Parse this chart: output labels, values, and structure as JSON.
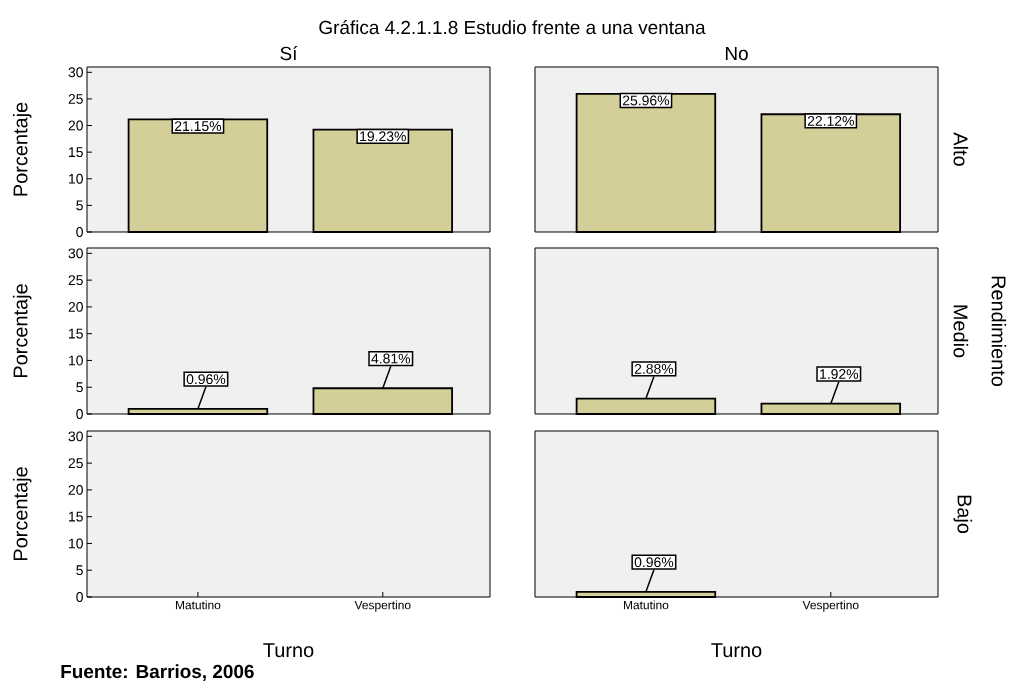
{
  "chart_data": [
    {
      "type": "bar",
      "title": "Gráfica 4.2.1.1.8 Estudio frente a una ventana",
      "subtitle": "Sí",
      "ylabel": "Porcentaje",
      "categories": [
        null,
        null
      ],
      "values": [
        21.15,
        19.23
      ],
      "value_labels": [
        "21.15%",
        "19.23%"
      ],
      "color": "#d4cf99",
      "ylim": [
        0,
        31
      ],
      "yticks": [
        0,
        5,
        10,
        15,
        20,
        25,
        30
      ],
      "tick_labels": "y"
    },
    {
      "type": "bar",
      "title": "No",
      "y2label": "Alto",
      "categories": [
        null,
        null
      ],
      "values": [
        25.96,
        22.12
      ],
      "value_labels": [
        "25.96%",
        "22.12%"
      ],
      "color": "#d4cf99",
      "tick_labels": false
    },
    {
      "type": "bar",
      "ylabel": "Porcentaje",
      "categories": [
        null,
        null
      ],
      "values": [
        0.96,
        4.81
      ],
      "value_labels": [
        "0.96%",
        "4.81%"
      ],
      "color": "#d4cf99",
      "ylim": [
        0,
        31
      ],
      "yticks": [
        0,
        5,
        10,
        15,
        20,
        25,
        30
      ],
      "tick_labels": "y"
    },
    {
      "type": "bar",
      "y2label": "Medio",
      "annotations": [
        "Rendimiento"
      ],
      "categories": [
        null,
        null
      ],
      "values": [
        2.88,
        1.92
      ],
      "value_labels": [
        "2.88%",
        "1.92%"
      ],
      "color": "#d4cf99",
      "tick_labels": false
    },
    {
      "type": "bar",
      "ylabel": "Porcentaje",
      "xlabel": "Turno",
      "annotations": [
        "Fuente: Barrios, 2006"
      ],
      "categories": [
        "Matutino",
        "Vespertino"
      ],
      "values": [
        null,
        null
      ],
      "value_labels": [
        null,
        null
      ],
      "color": "#d4cf99",
      "ylim": [
        0,
        31
      ],
      "yticks": [
        0,
        5,
        10,
        15,
        20,
        25,
        30
      ]
    },
    {
      "type": "bar",
      "xlabel": "Turno",
      "y2label": "Bajo",
      "categories": [
        "Matutino",
        "Vespertino"
      ],
      "values": [
        0.96,
        null
      ],
      "value_labels": [
        "0.96%",
        null
      ],
      "color": "#d4cf99",
      "tick_labels": "x"
    }
  ]
}
